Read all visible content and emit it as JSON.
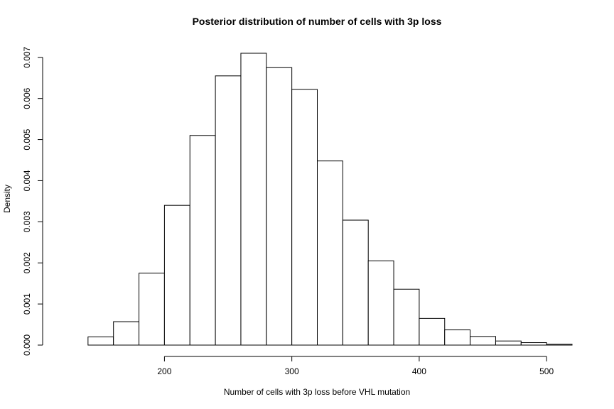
{
  "chart_data": {
    "type": "bar",
    "title": "Posterior distribution of number of cells with 3p loss",
    "xlabel": "Number of cells with 3p loss before VHL mutation",
    "ylabel": "Density",
    "xlim": [
      120,
      520
    ],
    "ylim": [
      0,
      0.0071
    ],
    "x_ticks": [
      {
        "value": 200,
        "label": "200"
      },
      {
        "value": 300,
        "label": "300"
      },
      {
        "value": 400,
        "label": "400"
      },
      {
        "value": 500,
        "label": "500"
      }
    ],
    "y_ticks": [
      {
        "value": 0.0,
        "label": "0.000"
      },
      {
        "value": 0.001,
        "label": "0.001"
      },
      {
        "value": 0.002,
        "label": "0.002"
      },
      {
        "value": 0.003,
        "label": "0.003"
      },
      {
        "value": 0.004,
        "label": "0.004"
      },
      {
        "value": 0.005,
        "label": "0.005"
      },
      {
        "value": 0.006,
        "label": "0.006"
      },
      {
        "value": 0.007,
        "label": "0.007"
      }
    ],
    "bins": [
      {
        "x0": 120,
        "x1": 140,
        "value": 0.0
      },
      {
        "x0": 140,
        "x1": 160,
        "value": 0.0002
      },
      {
        "x0": 160,
        "x1": 180,
        "value": 0.00057
      },
      {
        "x0": 180,
        "x1": 200,
        "value": 0.00175
      },
      {
        "x0": 200,
        "x1": 220,
        "value": 0.0034
      },
      {
        "x0": 220,
        "x1": 240,
        "value": 0.0051
      },
      {
        "x0": 240,
        "x1": 260,
        "value": 0.00655
      },
      {
        "x0": 260,
        "x1": 280,
        "value": 0.0071
      },
      {
        "x0": 280,
        "x1": 300,
        "value": 0.00675
      },
      {
        "x0": 300,
        "x1": 320,
        "value": 0.00622
      },
      {
        "x0": 320,
        "x1": 340,
        "value": 0.00448
      },
      {
        "x0": 340,
        "x1": 360,
        "value": 0.00304
      },
      {
        "x0": 360,
        "x1": 380,
        "value": 0.00205
      },
      {
        "x0": 380,
        "x1": 400,
        "value": 0.00136
      },
      {
        "x0": 400,
        "x1": 420,
        "value": 0.00065
      },
      {
        "x0": 420,
        "x1": 440,
        "value": 0.00037
      },
      {
        "x0": 440,
        "x1": 460,
        "value": 0.00021
      },
      {
        "x0": 460,
        "x1": 480,
        "value": 0.0001
      },
      {
        "x0": 480,
        "x1": 500,
        "value": 6e-05
      },
      {
        "x0": 500,
        "x1": 520,
        "value": 2e-05
      }
    ],
    "grid": false,
    "legend": "none"
  }
}
